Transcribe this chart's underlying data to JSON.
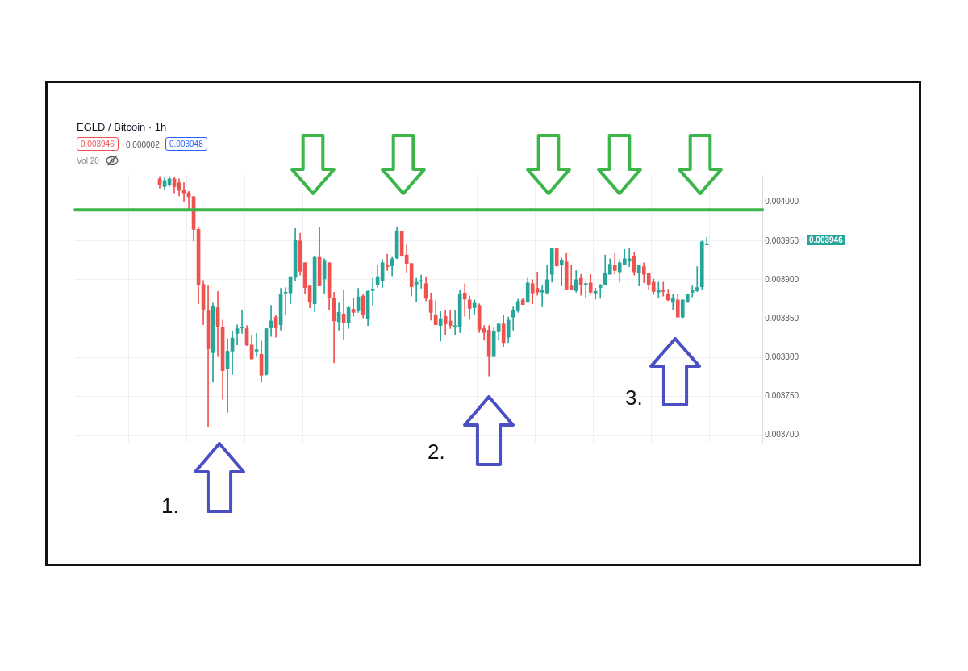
{
  "chart_data": {
    "type": "candlestick",
    "title": "EGLD / Bitcoin · 1h",
    "annotations": [
      "0.003946",
      "0.000002",
      "0.003948",
      "Vol 20",
      "0.003946",
      "1.",
      "2.",
      "3."
    ],
    "categories": [
      null,
      null,
      null,
      null,
      null,
      null,
      null,
      null,
      null,
      null,
      null,
      null,
      null,
      null,
      null,
      null,
      null,
      null,
      null,
      null,
      null,
      null,
      null,
      null,
      null,
      null,
      null,
      null,
      null,
      null,
      null,
      null,
      null,
      null,
      null,
      null,
      null,
      null,
      null,
      null,
      null,
      null,
      null,
      null,
      null,
      null,
      null,
      null,
      null,
      null,
      null,
      null,
      null,
      null,
      null,
      null,
      null,
      null,
      null,
      null,
      null,
      null,
      null,
      null,
      null,
      null,
      null,
      null,
      null,
      null,
      null,
      null,
      null,
      null,
      null,
      null,
      null,
      null,
      null,
      null,
      null,
      null,
      null,
      null,
      null,
      null,
      null,
      null,
      null,
      null,
      null,
      null,
      null,
      null,
      null,
      null,
      null,
      null,
      null,
      null,
      null,
      null,
      null,
      null,
      null,
      null,
      null,
      null,
      null,
      null,
      null,
      null,
      null,
      null,
      null,
      null,
      null,
      null,
      null,
      null,
      null,
      null,
      null,
      null,
      null,
      null,
      null,
      null,
      null,
      null,
      null,
      null,
      null,
      null,
      null,
      null,
      null,
      null,
      null,
      null,
      null,
      null
    ],
    "ohlc": [
      null,
      null,
      null,
      null,
      null,
      null,
      null,
      null,
      null,
      null,
      null,
      null,
      null,
      null,
      null,
      null,
      null,
      [
        0.00403,
        0.004033,
        0.004018,
        0.004022
      ],
      [
        0.00402,
        0.004032,
        0.004016,
        0.004028
      ],
      [
        0.004022,
        0.004033,
        0.00402,
        0.00403
      ],
      [
        0.00403,
        0.004032,
        0.004012,
        0.00402
      ],
      [
        0.004025,
        0.00403,
        0.004008,
        0.004015
      ],
      [
        0.004016,
        0.004025,
        0.004,
        0.004012
      ],
      [
        0.004012,
        0.004014,
        0.00399,
        0.004007
      ],
      [
        0.004007,
        0.004007,
        0.00395,
        0.003965
      ],
      [
        0.003965,
        0.003967,
        0.003869,
        0.003894
      ],
      [
        0.003894,
        0.003899,
        0.003842,
        0.003862
      ],
      [
        0.00386,
        0.003892,
        0.00371,
        0.003811
      ],
      [
        0.003806,
        0.00387,
        0.003768,
        0.003866
      ],
      [
        0.003864,
        0.003885,
        0.003801,
        0.00384
      ],
      [
        0.003839,
        0.003848,
        0.003746,
        0.003783
      ],
      [
        0.003785,
        0.003824,
        0.003729,
        0.003808
      ],
      [
        0.003808,
        0.003833,
        0.003778,
        0.003825
      ],
      [
        0.003831,
        0.003842,
        0.003816,
        0.003837
      ],
      [
        0.003838,
        0.003861,
        0.003831,
        0.003839
      ],
      [
        0.003837,
        0.003841,
        0.003815,
        0.003816
      ],
      [
        0.003816,
        0.003829,
        0.003798,
        0.003798
      ],
      [
        0.003808,
        0.003831,
        0.003801,
        0.00381
      ],
      [
        0.003804,
        0.003821,
        0.003768,
        0.003777
      ],
      [
        0.003778,
        0.003837,
        0.003777,
        0.003837
      ],
      [
        0.003838,
        0.003867,
        0.003827,
        0.003847
      ],
      [
        0.003852,
        0.003855,
        0.003826,
        0.003838
      ],
      [
        0.003842,
        0.003889,
        0.003835,
        0.003881
      ],
      [
        0.003883,
        0.00389,
        0.003855,
        0.003884
      ],
      [
        0.003883,
        0.003904,
        0.003869,
        0.003904
      ],
      [
        0.003903,
        0.003966,
        0.003899,
        0.003951
      ],
      [
        0.00395,
        0.00396,
        0.003906,
        0.003911
      ],
      [
        0.003922,
        0.003922,
        0.003882,
        0.00389
      ],
      [
        0.003892,
        0.003892,
        0.003864,
        0.003871
      ],
      [
        0.003869,
        0.003931,
        0.003859,
        0.003929
      ],
      [
        0.003929,
        0.003967,
        0.003892,
        0.003892
      ],
      [
        0.003901,
        0.003927,
        0.003882,
        0.003924
      ],
      [
        0.003922,
        0.003922,
        0.003861,
        0.003877
      ],
      [
        0.003876,
        0.003884,
        0.003793,
        0.003847
      ],
      [
        0.003846,
        0.00387,
        0.003835,
        0.003858
      ],
      [
        0.003856,
        0.003886,
        0.003823,
        0.003845
      ],
      [
        0.003845,
        0.003866,
        0.003837,
        0.003864
      ],
      [
        0.003862,
        0.003877,
        0.003853,
        0.003858
      ],
      [
        0.00386,
        0.003889,
        0.003858,
        0.003878
      ],
      [
        0.003879,
        0.003882,
        0.003851,
        0.003855
      ],
      [
        0.00385,
        0.003886,
        0.003841,
        0.003885
      ],
      [
        0.003886,
        0.003902,
        0.003866,
        0.003888
      ],
      [
        0.003893,
        0.003919,
        0.00389,
        0.003904
      ],
      [
        0.003899,
        0.003926,
        0.00389,
        0.003922
      ],
      [
        0.003919,
        0.003933,
        0.003912,
        0.003917
      ],
      [
        0.003918,
        0.003929,
        0.003905,
        0.003927
      ],
      [
        0.003928,
        0.003967,
        0.003927,
        0.003962
      ],
      [
        0.003962,
        0.003962,
        0.00393,
        0.003931
      ],
      [
        0.003932,
        0.003946,
        0.003909,
        0.003921
      ],
      [
        0.003921,
        0.003921,
        0.003879,
        0.003891
      ],
      [
        0.003894,
        0.003902,
        0.003872,
        0.003897
      ],
      [
        0.003898,
        0.003906,
        0.003889,
        0.003899
      ],
      [
        0.003895,
        0.003904,
        0.003873,
        0.003876
      ],
      [
        0.003874,
        0.003883,
        0.003848,
        0.003858
      ],
      [
        0.003855,
        0.003873,
        0.003842,
        0.003842
      ],
      [
        0.003841,
        0.003859,
        0.003821,
        0.00385
      ],
      [
        0.003853,
        0.00386,
        0.003829,
        0.003843
      ],
      [
        0.003847,
        0.00386,
        0.003837,
        0.003841
      ],
      [
        0.00384,
        0.00386,
        0.003829,
        0.003841
      ],
      [
        0.00384,
        0.003887,
        0.003832,
        0.003882
      ],
      [
        0.003883,
        0.003895,
        0.003853,
        0.003875
      ],
      [
        0.003874,
        0.003879,
        0.003849,
        0.003863
      ],
      [
        0.003864,
        0.003874,
        0.003855,
        0.00387
      ],
      [
        0.003867,
        0.003869,
        0.003832,
        0.003836
      ],
      [
        0.003837,
        0.003841,
        0.003822,
        0.003832
      ],
      [
        0.003835,
        0.003841,
        0.003776,
        0.003801
      ],
      [
        0.003801,
        0.003838,
        0.003801,
        0.003833
      ],
      [
        0.003833,
        0.003844,
        0.003822,
        0.003843
      ],
      [
        0.003843,
        0.003854,
        0.003814,
        0.003819
      ],
      [
        0.003826,
        0.003852,
        0.003819,
        0.003848
      ],
      [
        0.003852,
        0.003865,
        0.003835,
        0.00386
      ],
      [
        0.00386,
        0.003875,
        0.003858,
        0.003872
      ],
      [
        0.003874,
        0.003876,
        0.003868,
        0.003868
      ],
      [
        0.003871,
        0.003902,
        0.003871,
        0.003896
      ],
      [
        0.003895,
        0.0039,
        0.003869,
        0.003883
      ],
      [
        0.003889,
        0.00391,
        0.00388,
        0.003884
      ],
      [
        0.003884,
        0.003893,
        0.003865,
        0.003887
      ],
      [
        0.003883,
        0.003919,
        0.003883,
        0.0039
      ],
      [
        0.003907,
        0.00394,
        0.003897,
        0.00394
      ],
      [
        0.00394,
        0.00394,
        0.003917,
        0.003918
      ],
      [
        0.003919,
        0.003928,
        0.003892,
        0.003925
      ],
      [
        0.003923,
        0.003934,
        0.003887,
        0.003888
      ],
      [
        0.003892,
        0.003919,
        0.003887,
        0.003887
      ],
      [
        0.003886,
        0.003912,
        0.003884,
        0.0039
      ],
      [
        0.003902,
        0.003907,
        0.00388,
        0.003893
      ],
      [
        0.003894,
        0.003897,
        0.003877,
        0.003895
      ],
      [
        0.003896,
        0.003907,
        0.003883,
        0.003884
      ],
      [
        0.003883,
        0.003889,
        0.003875,
        0.003885
      ],
      [
        0.00389,
        0.003894,
        0.003876,
        0.003893
      ],
      [
        0.003894,
        0.003932,
        0.003894,
        0.003909
      ],
      [
        0.003907,
        0.003927,
        0.003907,
        0.00392
      ],
      [
        0.003919,
        0.003934,
        0.003907,
        0.003912
      ],
      [
        0.00391,
        0.003926,
        0.003897,
        0.003922
      ],
      [
        0.003919,
        0.003939,
        0.003919,
        0.003927
      ],
      [
        0.003924,
        0.00394,
        0.003917,
        0.003927
      ],
      [
        0.00393,
        0.003935,
        0.003906,
        0.00391
      ],
      [
        0.003909,
        0.003919,
        0.003892,
        0.003919
      ],
      [
        0.003917,
        0.003922,
        0.003896,
        0.003907
      ],
      [
        0.003908,
        0.003908,
        0.003887,
        0.003894
      ],
      [
        0.003897,
        0.003901,
        0.003881,
        0.003885
      ],
      [
        0.003884,
        0.003897,
        0.003877,
        0.003886
      ],
      [
        0.003887,
        0.003897,
        0.003879,
        0.003885
      ],
      [
        0.003881,
        0.003888,
        0.003873,
        0.003874
      ],
      [
        0.003871,
        0.003881,
        0.003861,
        0.003876
      ],
      [
        0.003874,
        0.003881,
        0.003852,
        0.003852
      ],
      [
        0.003852,
        0.003874,
        0.003851,
        0.003874
      ],
      [
        0.003871,
        0.003881,
        0.003871,
        0.003881
      ],
      [
        0.003884,
        0.003892,
        0.003878,
        0.003886
      ],
      [
        0.003886,
        0.003917,
        0.003885,
        0.00389
      ],
      [
        0.003891,
        0.00395,
        0.003887,
        0.003949
      ],
      [
        0.003945,
        0.003955,
        0.003945,
        0.003946
      ],
      null,
      null,
      null,
      null,
      null,
      null,
      null,
      null,
      null,
      null,
      null
    ],
    "colors": [
      null,
      null,
      null,
      null,
      null,
      null,
      null,
      null,
      null,
      null,
      null,
      null,
      null,
      null,
      null,
      null,
      null,
      "#ef5350",
      "#26a69a",
      "#26a69a",
      "#ef5350",
      "#ef5350",
      "#ef5350",
      "#ef5350",
      "#ef5350",
      "#ef5350",
      "#ef5350",
      "#ef5350",
      "#26a69a",
      "#ef5350",
      "#ef5350",
      "#26a69a",
      "#26a69a",
      "#26a69a",
      "#26a69a",
      "#ef5350",
      "#ef5350",
      "#26a69a",
      "#ef5350",
      "#26a69a",
      "#26a69a",
      "#ef5350",
      "#26a69a",
      "#26a69a",
      "#26a69a",
      "#26a69a",
      "#ef5350",
      "#ef5350",
      "#ef5350",
      "#26a69a",
      "#ef5350",
      "#26a69a",
      "#ef5350",
      "#ef5350",
      "#26a69a",
      "#ef5350",
      "#26a69a",
      "#ef5350",
      "#26a69a",
      "#ef5350",
      "#26a69a",
      "#26a69a",
      "#26a69a",
      "#26a69a",
      "#ef5350",
      "#26a69a",
      "#26a69a",
      "#ef5350",
      "#ef5350",
      "#ef5350",
      "#26a69a",
      "#26a69a",
      "#ef5350",
      "#ef5350",
      "#ef5350",
      "#26a69a",
      "#ef5350",
      "#ef5350",
      "#26a69a",
      "#26a69a",
      "#ef5350",
      "#ef5350",
      "#26a69a",
      "#ef5350",
      "#ef5350",
      "#ef5350",
      "#26a69a",
      "#26a69a",
      "#ef5350",
      "#26a69a",
      "#26a69a",
      "#26a69a",
      "#ef5350",
      "#26a69a",
      "#ef5350",
      "#ef5350",
      "#26a69a",
      "#26a69a",
      "#26a69a",
      "#ef5350",
      "#26a69a",
      "#ef5350",
      "#ef5350",
      "#26a69a",
      "#ef5350",
      "#26a69a",
      "#ef5350",
      "#26a69a",
      "#26a69a",
      "#26a69a",
      "#26a69a",
      "#ef5350",
      "#26a69a",
      "#26a69a",
      "#26a69a",
      "#ef5350",
      "#26a69a",
      "#ef5350",
      "#ef5350",
      "#ef5350",
      "#26a69a",
      "#ef5350",
      "#ef5350",
      "#26a69a",
      "#ef5350",
      "#26a69a",
      "#26a69a",
      "#26a69a",
      "#26a69a",
      "#26a69a",
      "#26a69a",
      null,
      null,
      null,
      null,
      null,
      null,
      null,
      null,
      null,
      null,
      null
    ],
    "ylim": [
      0.00369,
      0.004035
    ],
    "yticks": [
      {
        "value": 0.0037,
        "label": "0.003700"
      },
      {
        "value": 0.00375,
        "label": "0.003750"
      },
      {
        "value": 0.0038,
        "label": "0.003800"
      },
      {
        "value": 0.00385,
        "label": "0.003850"
      },
      {
        "value": 0.0039,
        "label": "0.003900"
      },
      {
        "value": 0.00395,
        "label": "0.003950"
      },
      {
        "value": 0.004,
        "label": "0.004000"
      }
    ],
    "ref_lines": [
      {
        "axis": "y",
        "value": 0.00399,
        "color": "#3cb54a"
      }
    ],
    "grid": true,
    "tick_labels": "y"
  }
}
